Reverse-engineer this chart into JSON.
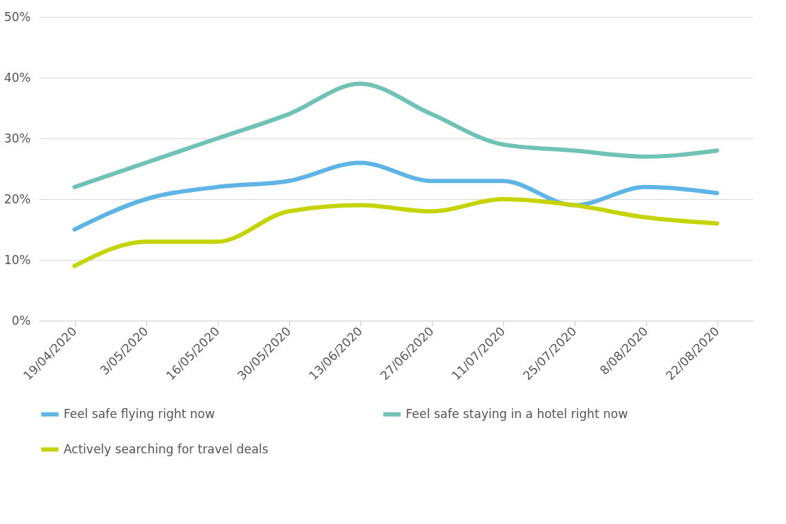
{
  "chart_data": {
    "type": "line",
    "categories": [
      "19/04/2020",
      "3/05/2020",
      "16/05/2020",
      "30/05/2020",
      "13/06/2020",
      "27/06/2020",
      "11/07/2020",
      "25/07/2020",
      "8/08/2020",
      "22/08/2020"
    ],
    "series": [
      {
        "name": "Feel safe flying right now",
        "color": "#5db4e5",
        "values": [
          15,
          20,
          22,
          23,
          26,
          23,
          23,
          19,
          22,
          21
        ]
      },
      {
        "name": "Feel safe staying in a hotel right now",
        "color": "#6fc2b4",
        "values": [
          22,
          26,
          30,
          34,
          39,
          34,
          29,
          28,
          27,
          28
        ]
      },
      {
        "name": "Actively searching for travel deals",
        "color": "#c5d400",
        "values": [
          9,
          13,
          13,
          18,
          19,
          18,
          20,
          19,
          17,
          16
        ]
      }
    ],
    "ylim": [
      0,
      50
    ],
    "yticks": [
      {
        "value": 0,
        "label": "0%"
      },
      {
        "value": 10,
        "label": "10%"
      },
      {
        "value": 20,
        "label": "20%"
      },
      {
        "value": 30,
        "label": "30%"
      },
      {
        "value": 40,
        "label": "40%"
      },
      {
        "value": 50,
        "label": "50%"
      }
    ],
    "grid": "y",
    "legend": "bottom",
    "marker": "none",
    "line_style": "solid"
  }
}
